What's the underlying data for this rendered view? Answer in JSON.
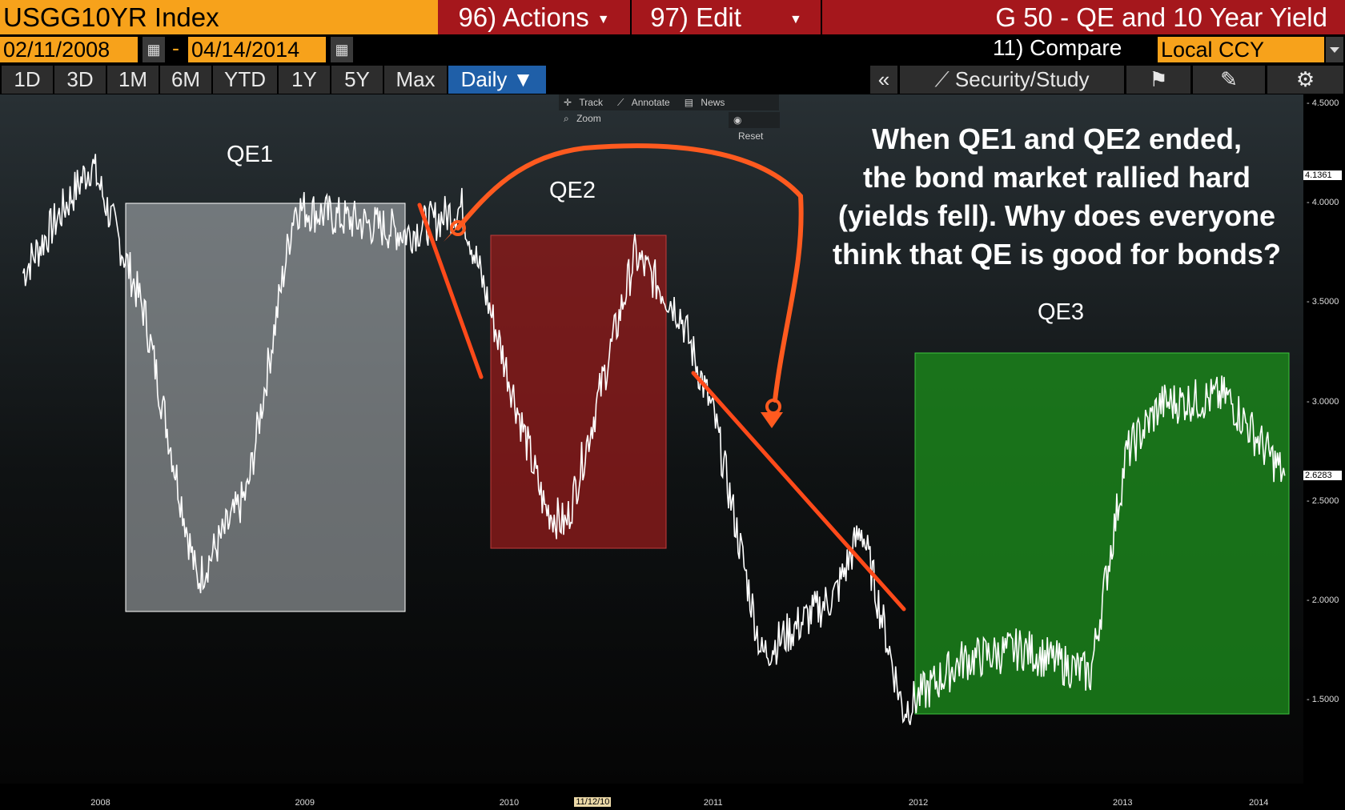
{
  "header": {
    "ticker": "USGG10YR Index",
    "actions_label": "96) Actions",
    "edit_label": "97) Edit",
    "title": "G 50 - QE and 10 Year Yield"
  },
  "dates": {
    "start": "02/11/2008",
    "sep": "-",
    "end": "04/14/2014"
  },
  "compare_label": "11) Compare",
  "currency": "Local CCY",
  "ranges": [
    "1D",
    "3D",
    "1M",
    "6M",
    "YTD",
    "1Y",
    "5Y",
    "Max"
  ],
  "frequency": "Daily ▼",
  "collapse_label": "«",
  "security_study": "Security/Study",
  "chart_tools": {
    "track": "Track",
    "annotate": "Annotate",
    "news": "News",
    "zoom": "Zoom",
    "reset": "Reset"
  },
  "annotation": {
    "line1": "When QE1 and QE2 ended,",
    "line2": "the bond market rallied hard",
    "line3": "(yields fell).  Why does everyone",
    "line4": "think that QE is good for bonds?"
  },
  "zones": {
    "qe1": "QE1",
    "qe2": "QE2",
    "qe3": "QE3"
  },
  "colors": {
    "bloomberg_orange": "#f7a21b",
    "action_red": "#a5171c",
    "qe1": "#9aa0a3",
    "qe2": "#8c1a1a",
    "qe3": "#1c8a1c",
    "arrow": "#ff5a1f",
    "selected_tab": "#1f5fa8"
  },
  "chart_data": {
    "type": "line",
    "title": "G 50 - QE and 10 Year Yield",
    "series": [
      {
        "name": "USGG10YR Index",
        "x": [
          "2008-02-11",
          "2008-06-13",
          "2008-09-15",
          "2008-12-18",
          "2009-03-18",
          "2009-06-10",
          "2009-12-31",
          "2010-04-05",
          "2010-08-31",
          "2010-10-08",
          "2011-02-08",
          "2011-04-30",
          "2011-06-30",
          "2011-09-23",
          "2012-02-01",
          "2012-03-19",
          "2012-06-01",
          "2012-09-14",
          "2012-12-31",
          "2013-05-02",
          "2013-07-05",
          "2013-09-05",
          "2013-12-31",
          "2014-04-14"
        ],
        "y": [
          3.65,
          4.2,
          3.45,
          2.1,
          2.55,
          3.98,
          3.85,
          3.98,
          2.47,
          2.38,
          3.74,
          3.45,
          2.92,
          1.73,
          2.03,
          2.37,
          1.45,
          1.7,
          1.76,
          1.63,
          2.74,
          2.99,
          3.03,
          2.63
        ]
      }
    ],
    "last_value": "2.6283",
    "marker_value": "4.1361",
    "ylim": [
      1.0,
      4.6
    ],
    "yticks": [
      "4.5000",
      "4.0000",
      "3.5000",
      "3.0000",
      "2.5000",
      "2.0000",
      "1.5000"
    ],
    "xticks": [
      "2008",
      "2009",
      "2010",
      "11/12/10",
      "2011",
      "2012",
      "2013",
      "2014"
    ],
    "grid": false
  }
}
